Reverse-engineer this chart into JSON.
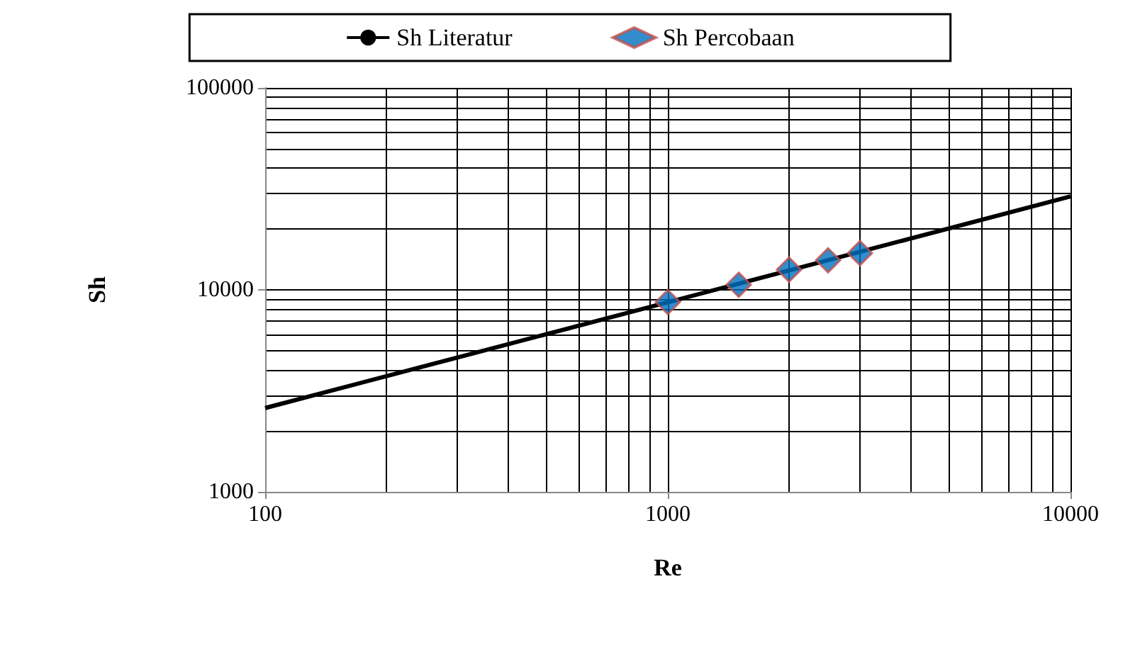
{
  "chart_data": {
    "type": "scatter",
    "xlabel": "Re",
    "ylabel": "Sh",
    "log": "xy",
    "grid": true,
    "legend": "top",
    "xlim": [
      100,
      10000
    ],
    "xticks": [
      100,
      1000,
      10000
    ],
    "ylim": [
      1000,
      100000
    ],
    "yticks": [
      1000,
      10000,
      100000
    ],
    "series": [
      {
        "name": "Sh Literatur",
        "type": "line",
        "color": "#000000",
        "marker": "none",
        "line_style": "solid",
        "x": [
          100,
          10000
        ],
        "values": [
          2600,
          29000
        ]
      },
      {
        "name": "Sh Percobaan",
        "color": "#0070c0",
        "marker": "diamond",
        "x": [
          1000,
          1500,
          2000,
          2500,
          3000
        ],
        "values": [
          8700,
          10600,
          12600,
          14000,
          15200
        ]
      }
    ]
  }
}
